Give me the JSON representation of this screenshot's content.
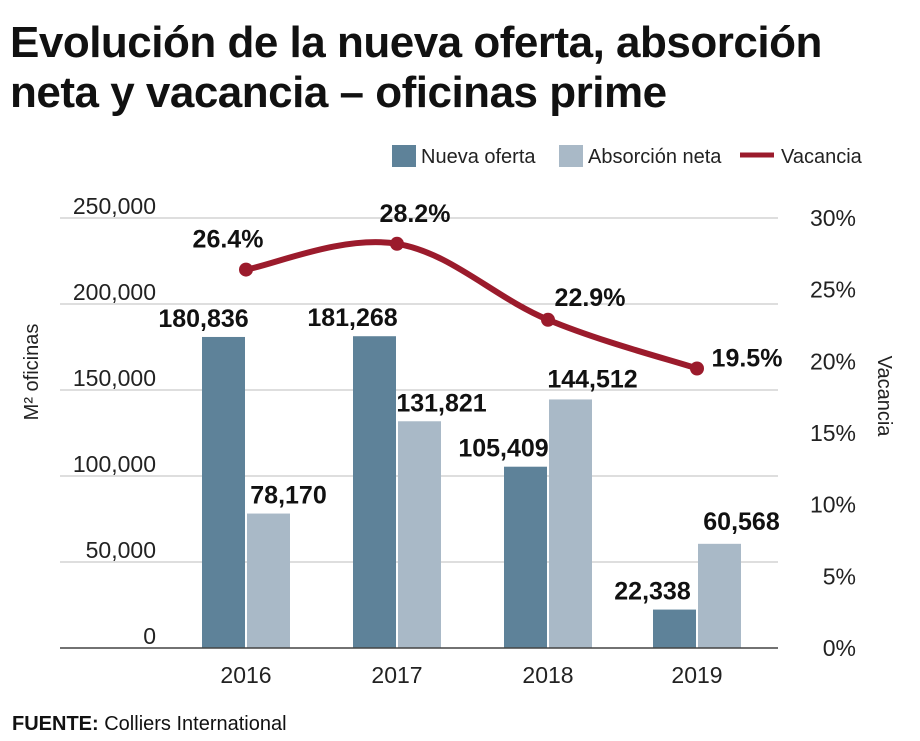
{
  "title": "Evolución de la nueva oferta, absorción neta y vacancia – oficinas prime",
  "source": {
    "label": "FUENTE:",
    "value": "Colliers International"
  },
  "chart_data": {
    "type": "bar",
    "categories": [
      "2016",
      "2017",
      "2018",
      "2019"
    ],
    "series": [
      {
        "name": "Nueva oferta",
        "type": "bar",
        "axis": "left",
        "color": "#5e8299",
        "values": [
          180836,
          181268,
          105409,
          22338
        ],
        "labels": [
          "180,836",
          "181,268",
          "105,409",
          "22,338"
        ]
      },
      {
        "name": "Absorción neta",
        "type": "bar",
        "axis": "left",
        "color": "#a9b9c7",
        "values": [
          78170,
          131821,
          144512,
          60568
        ],
        "labels": [
          "78,170",
          "131,821",
          "144,512",
          "60,568"
        ]
      },
      {
        "name": "Vacancia",
        "type": "line",
        "axis": "right",
        "color": "#9b1b2c",
        "values": [
          26.4,
          28.2,
          22.9,
          19.5
        ],
        "labels": [
          "26.4%",
          "28.2%",
          "22.9%",
          "19.5%"
        ]
      }
    ],
    "ylabel": "M² oficinas",
    "y2label": "Vacancia",
    "ylim": [
      0,
      250000
    ],
    "y2lim": [
      0,
      30
    ],
    "yticks": [
      "0",
      "50,000",
      "100,000",
      "150,000",
      "200,000",
      "250,000"
    ],
    "y2ticks": [
      "0%",
      "5%",
      "10%",
      "15%",
      "20%",
      "25%",
      "30%"
    ],
    "grid": true,
    "legend_position": "top-right"
  }
}
